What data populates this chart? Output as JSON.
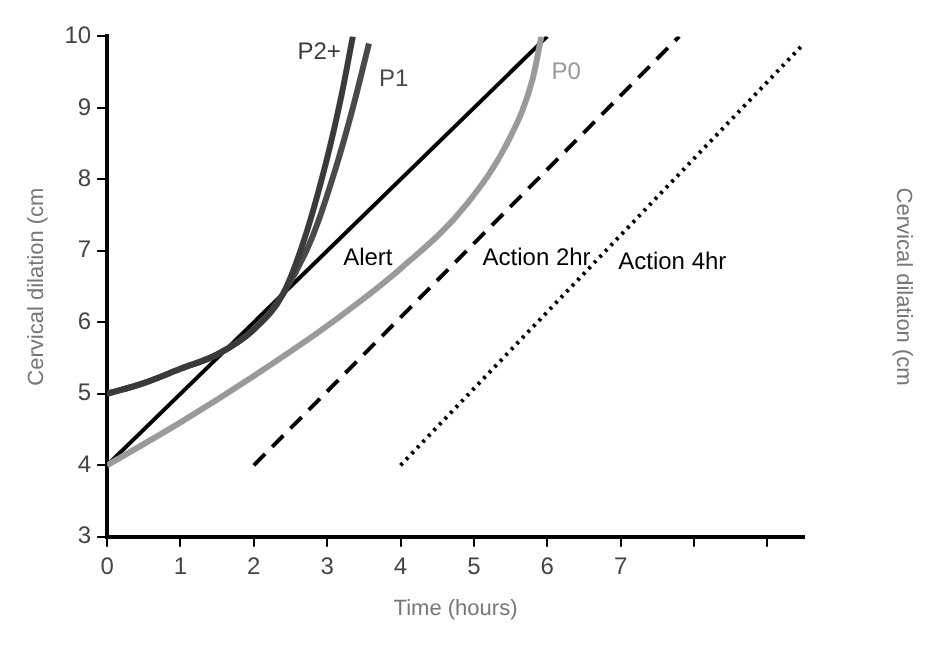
{
  "chart_data": {
    "type": "line",
    "xlabel": "Time (hours)",
    "ylabel": "Cervical dilation (cm",
    "y2label": "Cervical dilation (cm",
    "xlim": [
      0,
      9.5
    ],
    "xticks": [
      0,
      1,
      2,
      3,
      4,
      5,
      6,
      7,
      {
        "value": 8,
        "label": null
      },
      {
        "value": 9,
        "label": null
      }
    ],
    "ylim": [
      3,
      10
    ],
    "yticks": [
      3,
      4,
      5,
      6,
      7,
      8,
      9,
      10
    ],
    "grid": false,
    "legend": false,
    "marker": "none",
    "series": [
      {
        "name": "P2+",
        "color": "#3a3a3a",
        "line_style": "solid",
        "x": [
          0,
          0.5,
          1,
          1.5,
          2,
          2.4,
          2.7,
          3,
          3.2,
          3.35
        ],
        "values": [
          5,
          5.15,
          5.35,
          5.55,
          5.9,
          6.4,
          7.2,
          8.3,
          9.2,
          10
        ]
      },
      {
        "name": "P1",
        "color": "#4a4a4a",
        "line_style": "solid",
        "x": [
          0,
          0.5,
          1,
          1.5,
          2,
          2.4,
          2.8,
          3.1,
          3.35,
          3.57
        ],
        "values": [
          5,
          5.15,
          5.35,
          5.55,
          5.9,
          6.4,
          7.2,
          8.1,
          9,
          9.9
        ]
      },
      {
        "name": "P0",
        "color": "#9a9a9a",
        "line_style": "solid",
        "x": [
          0,
          1,
          2,
          3,
          4,
          4.9,
          5.5,
          5.8,
          5.92
        ],
        "values": [
          4,
          4.6,
          5.25,
          5.95,
          6.75,
          7.65,
          8.6,
          9.4,
          10
        ]
      },
      {
        "name": "Alert",
        "color": "#000000",
        "line_style": "solid",
        "x": [
          0,
          6
        ],
        "values": [
          4,
          10
        ]
      },
      {
        "name": "Action 2hr",
        "color": "#000000",
        "line_style": "dashed",
        "x": [
          2,
          7.8
        ],
        "values": [
          4,
          10
        ]
      },
      {
        "name": "Action 4hr",
        "color": "#000000",
        "line_style": "dotted",
        "x": [
          4,
          9.5
        ],
        "values": [
          4,
          9.9
        ]
      }
    ]
  }
}
